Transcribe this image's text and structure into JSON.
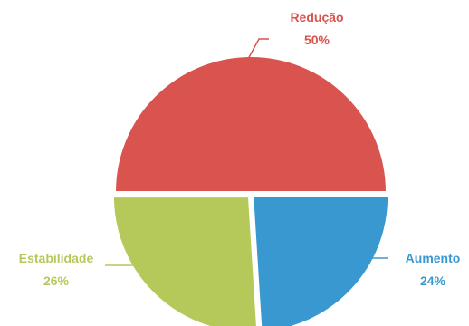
{
  "chart_data": {
    "type": "pie",
    "title": "",
    "slices": [
      {
        "name": "Redução",
        "value": 50,
        "value_label": "50%",
        "color": "#d9534f"
      },
      {
        "name": "Aumento",
        "value": 24,
        "value_label": "24%",
        "color": "#3a98d1"
      },
      {
        "name": "Estabilidade",
        "value": 26,
        "value_label": "26%",
        "color": "#b5c95b"
      }
    ],
    "legend": "none",
    "labels": "outside with leader lines"
  }
}
